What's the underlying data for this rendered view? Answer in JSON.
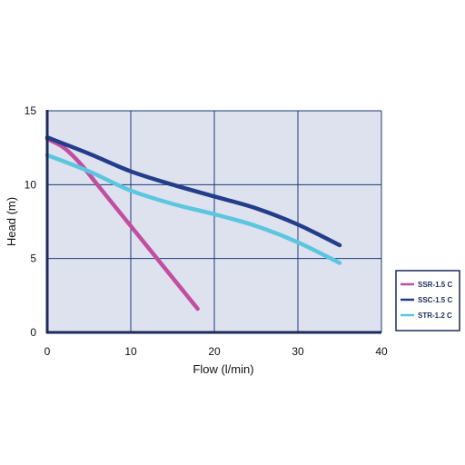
{
  "chart_data": {
    "type": "line",
    "xlabel": "Flow (l/min)",
    "ylabel": "Head (m)",
    "xlim": [
      0,
      40
    ],
    "ylim": [
      0,
      15
    ],
    "x_ticks": [
      "0",
      "10",
      "20",
      "30",
      "40"
    ],
    "y_ticks": [
      "0",
      "5",
      "10",
      "15"
    ],
    "grid": true,
    "legend_position": "right",
    "colors": {
      "plot_background": "#dde2ee",
      "grid": "#1e3a7a",
      "axis": "#1c2a5a",
      "legend_border": "#1c2a5a"
    },
    "series": [
      {
        "name": "SSR-1.5 C",
        "color": "#c24ea0",
        "points": [
          [
            0,
            13.1
          ],
          [
            2,
            12.5
          ],
          [
            4,
            11.4
          ],
          [
            6,
            10.0
          ],
          [
            8,
            8.6
          ],
          [
            10,
            7.2
          ],
          [
            12,
            5.8
          ],
          [
            14,
            4.4
          ],
          [
            16,
            3.0
          ],
          [
            18,
            1.6
          ]
        ]
      },
      {
        "name": "SSC-1.5 C",
        "color": "#233d8a",
        "points": [
          [
            0,
            13.2
          ],
          [
            5,
            12.1
          ],
          [
            10,
            10.9
          ],
          [
            15,
            10.0
          ],
          [
            20,
            9.2
          ],
          [
            25,
            8.4
          ],
          [
            30,
            7.3
          ],
          [
            35,
            5.9
          ]
        ]
      },
      {
        "name": "STR-1.2 C",
        "color": "#5bc6de",
        "points": [
          [
            0,
            12.0
          ],
          [
            5,
            10.9
          ],
          [
            10,
            9.6
          ],
          [
            15,
            8.7
          ],
          [
            20,
            8.0
          ],
          [
            25,
            7.2
          ],
          [
            30,
            6.1
          ],
          [
            35,
            4.7
          ]
        ]
      }
    ]
  }
}
